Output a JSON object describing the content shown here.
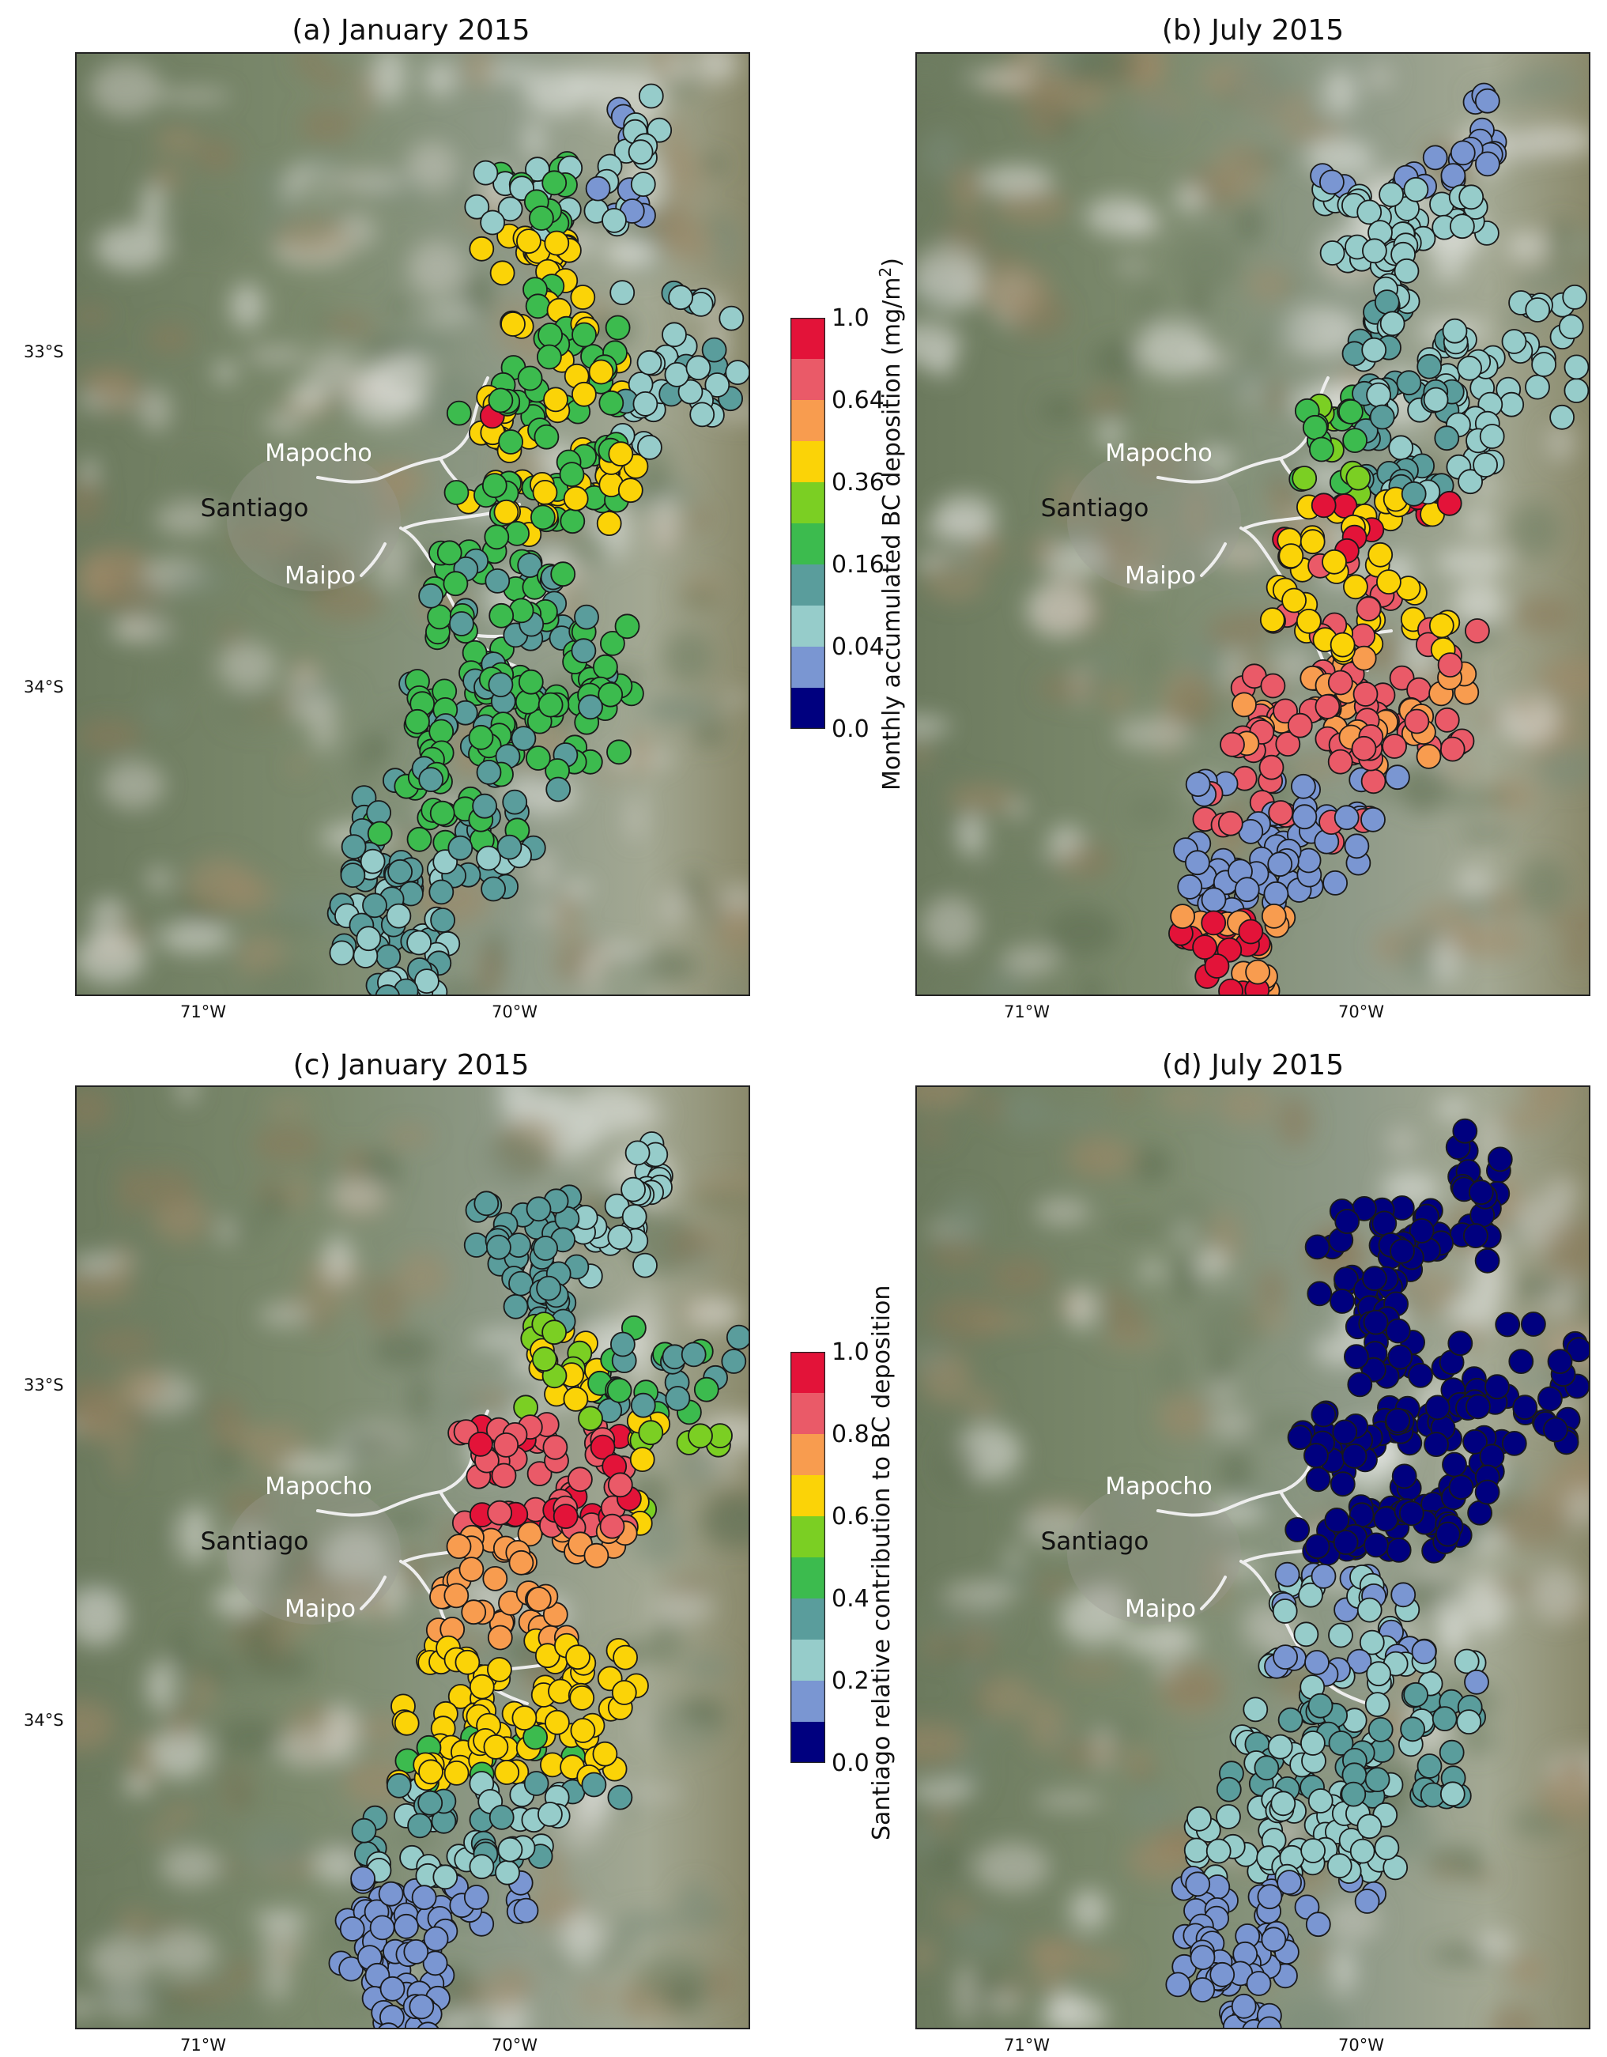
{
  "panels": [
    {
      "id": "a",
      "title": "(a) January 2015"
    },
    {
      "id": "b",
      "title": "(b) July 2015"
    },
    {
      "id": "c",
      "title": "(c) January 2015"
    },
    {
      "id": "d",
      "title": "(d) July 2015"
    }
  ],
  "map_labels": {
    "mapocho": "Mapocho",
    "santiago": "Santiago",
    "maipo": "Maipo"
  },
  "axes": {
    "lat_ticks": [
      "33°S",
      "34°S"
    ],
    "lon_ticks": [
      "71°W",
      "70°W"
    ]
  },
  "colorbar_top": {
    "title": "Monthly accumulated BC deposition (mg/m²)",
    "ticks": [
      "1.0",
      "0.64",
      "0.36",
      "0.16",
      "0.04",
      "0.0"
    ]
  },
  "colorbar_bottom": {
    "title": "Santiago relative contribution to BC deposition",
    "ticks": [
      "1.0",
      "0.8",
      "0.6",
      "0.4",
      "0.2",
      "0.0"
    ]
  },
  "colors": {
    "palette": [
      "#00007f",
      "#7a96d2",
      "#96ccca",
      "#5a9d9c",
      "#3cbb4e",
      "#7bcf23",
      "#fbd307",
      "#f89c4f",
      "#ea5a68",
      "#e31339"
    ],
    "map_base": "#7e8a74"
  }
}
